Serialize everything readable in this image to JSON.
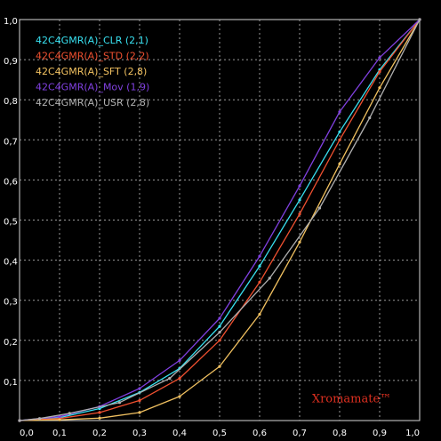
{
  "chart_data": {
    "type": "line",
    "title": "",
    "xlabel": "",
    "ylabel": "",
    "xlim": [
      0,
      1
    ],
    "ylim": [
      0,
      1
    ],
    "grid": true,
    "legend_position": "top-left",
    "x_ticks": [
      "0,0",
      "0,1",
      "0,2",
      "0,3",
      "0,4",
      "0,5",
      "0,6",
      "0,7",
      "0,8",
      "0,9",
      "1,0"
    ],
    "y_ticks": [
      "0,0",
      "0,1",
      "0,2",
      "0,3",
      "0,4",
      "0,5",
      "0,6",
      "0,7",
      "0,8",
      "0,9",
      "1,0"
    ],
    "series": [
      {
        "name": "42C4GMR(A)_CLR (2,1)",
        "color": "#38e0f0",
        "x": [
          0,
          0.1,
          0.2,
          0.3,
          0.4,
          0.5,
          0.6,
          0.7,
          0.8,
          0.9,
          1.0
        ],
        "y": [
          0,
          0.007,
          0.03,
          0.07,
          0.13,
          0.235,
          0.385,
          0.55,
          0.72,
          0.875,
          1.0
        ]
      },
      {
        "name": "42C4GMR(A)_STD (2,2)",
        "color": "#f05030",
        "x": [
          0,
          0.1,
          0.2,
          0.3,
          0.4,
          0.5,
          0.6,
          0.7,
          0.8,
          0.9,
          1.0
        ],
        "y": [
          0,
          0.005,
          0.02,
          0.05,
          0.105,
          0.2,
          0.345,
          0.515,
          0.7,
          0.87,
          1.0
        ]
      },
      {
        "name": "42C4GMR(A)_SFT (2,8)",
        "color": "#f0c060",
        "x": [
          0,
          0.1,
          0.2,
          0.3,
          0.4,
          0.5,
          0.6,
          0.7,
          0.8,
          0.9,
          1.0
        ],
        "y": [
          0,
          0.002,
          0.006,
          0.02,
          0.06,
          0.135,
          0.265,
          0.445,
          0.64,
          0.83,
          1.0
        ]
      },
      {
        "name": "42C4GMR(A)_Mov (1,9)",
        "color": "#8040e0",
        "x": [
          0,
          0.1,
          0.2,
          0.3,
          0.4,
          0.5,
          0.6,
          0.7,
          0.8,
          0.9,
          1.0
        ],
        "y": [
          0,
          0.01,
          0.035,
          0.08,
          0.15,
          0.255,
          0.41,
          0.585,
          0.77,
          0.905,
          1.0
        ]
      },
      {
        "name": "42C4GMR(A)_USR (2,8)",
        "color": "#b0b0b0",
        "x": [
          0,
          0.05,
          0.125,
          0.25,
          0.375,
          0.5,
          0.625,
          0.75,
          0.875,
          1.0
        ],
        "y": [
          0,
          0.005,
          0.018,
          0.045,
          0.105,
          0.22,
          0.355,
          0.53,
          0.755,
          1.0
        ]
      }
    ],
    "annotations": [
      {
        "text": "Xromamate™",
        "x": 0.83,
        "y": 0.045,
        "color": "#e03020"
      }
    ]
  }
}
